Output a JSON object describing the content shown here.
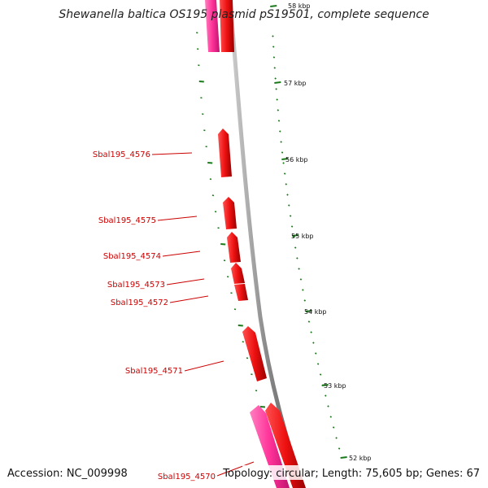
{
  "title": "Shewanella baltica OS195 plasmid pS19501, complete sequence",
  "accession": "Accession: NC_009998",
  "summary": "Topology: circular; Length: 75,605 bp; Genes: 67",
  "colors": {
    "backbone": "#8a8a8a",
    "gene_red": "#ee1111",
    "gene_pink": "#ff3399",
    "label_red": "#cc0000",
    "tick_green": "#1a7a1a"
  },
  "scale_ticks": [
    "58 kbp",
    "57 kbp",
    "56 kbp",
    "55 kbp",
    "54 kbp",
    "53 kbp",
    "52 kbp"
  ],
  "genes": [
    {
      "label": "Sbal195_4576"
    },
    {
      "label": "Sbal195_4575"
    },
    {
      "label": "Sbal195_4574"
    },
    {
      "label": "Sbal195_4573"
    },
    {
      "label": "Sbal195_4572"
    },
    {
      "label": "Sbal195_4571"
    },
    {
      "label": "Sbal195_4570"
    }
  ]
}
